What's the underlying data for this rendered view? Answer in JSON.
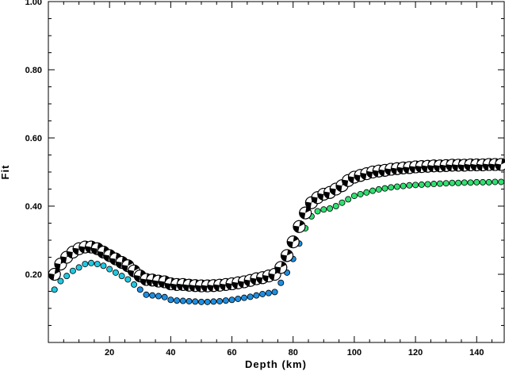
{
  "chart_data": {
    "type": "scatter",
    "xlabel": "Depth (km)",
    "ylabel": "Fit",
    "xlim": [
      0,
      149
    ],
    "ylim": [
      0,
      1.0
    ],
    "xticks": [
      20,
      40,
      60,
      80,
      100,
      120,
      140
    ],
    "yticks": [
      0.2,
      0.4,
      0.6,
      0.8,
      1.0
    ],
    "xtick_labels": [
      "20",
      "40",
      "60",
      "80",
      "100",
      "120",
      "140"
    ],
    "ytick_labels": [
      "0.20",
      "0.40",
      "0.60",
      "0.80",
      "1.00"
    ],
    "grid": false,
    "colors": {
      "low": "#20c8e0",
      "mid": "#1e8ee0",
      "high": "#30e070"
    },
    "series": [
      {
        "marker": "focal-mechanism",
        "x": [
          2,
          4,
          6,
          8,
          10,
          12,
          14,
          16,
          18,
          20,
          22,
          24,
          26,
          28,
          30,
          32,
          34,
          36,
          38,
          40,
          42,
          44,
          46,
          48,
          50,
          52,
          54,
          56,
          58,
          60,
          62,
          64,
          66,
          68,
          70,
          72,
          74,
          76,
          78,
          80,
          82,
          84,
          86,
          88,
          90,
          92,
          94,
          96,
          98,
          100,
          102,
          104,
          106,
          108,
          110,
          112,
          114,
          116,
          118,
          120,
          122,
          124,
          126,
          128,
          130,
          132,
          134,
          136,
          138,
          140,
          142,
          144,
          146,
          148
        ],
        "values": [
          0.2,
          0.23,
          0.25,
          0.265,
          0.275,
          0.28,
          0.28,
          0.275,
          0.265,
          0.255,
          0.245,
          0.235,
          0.225,
          0.21,
          0.195,
          0.185,
          0.183,
          0.18,
          0.178,
          0.172,
          0.17,
          0.17,
          0.168,
          0.167,
          0.166,
          0.166,
          0.167,
          0.168,
          0.17,
          0.172,
          0.175,
          0.178,
          0.182,
          0.187,
          0.19,
          0.195,
          0.2,
          0.22,
          0.255,
          0.295,
          0.34,
          0.38,
          0.41,
          0.425,
          0.435,
          0.44,
          0.45,
          0.46,
          0.475,
          0.485,
          0.49,
          0.495,
          0.5,
          0.503,
          0.505,
          0.508,
          0.51,
          0.512,
          0.513,
          0.515,
          0.516,
          0.517,
          0.518,
          0.518,
          0.519,
          0.52,
          0.52,
          0.52,
          0.521,
          0.521,
          0.521,
          0.522,
          0.522,
          0.522
        ]
      },
      {
        "marker": "circle",
        "x": [
          2,
          4,
          6,
          8,
          10,
          12,
          14,
          16,
          18,
          20,
          22,
          24,
          26,
          28,
          30,
          32,
          34,
          36,
          38,
          40,
          42,
          44,
          46,
          48,
          50,
          52,
          54,
          56,
          58,
          60,
          62,
          64,
          66,
          68,
          70,
          72,
          74,
          76,
          78,
          80,
          82,
          84,
          86,
          88,
          90,
          92,
          94,
          96,
          98,
          100,
          102,
          104,
          106,
          108,
          110,
          112,
          114,
          116,
          118,
          120,
          122,
          124,
          126,
          128,
          130,
          132,
          134,
          136,
          138,
          140,
          142,
          144,
          146,
          148
        ],
        "values": [
          0.155,
          0.18,
          0.195,
          0.21,
          0.22,
          0.23,
          0.233,
          0.23,
          0.225,
          0.215,
          0.205,
          0.195,
          0.185,
          0.17,
          0.155,
          0.14,
          0.138,
          0.136,
          0.133,
          0.125,
          0.123,
          0.122,
          0.121,
          0.12,
          0.119,
          0.119,
          0.12,
          0.121,
          0.123,
          0.125,
          0.128,
          0.131,
          0.134,
          0.138,
          0.142,
          0.145,
          0.148,
          0.175,
          0.205,
          0.245,
          0.29,
          0.335,
          0.37,
          0.385,
          0.39,
          0.393,
          0.4,
          0.41,
          0.42,
          0.43,
          0.435,
          0.44,
          0.445,
          0.449,
          0.452,
          0.455,
          0.457,
          0.459,
          0.461,
          0.462,
          0.463,
          0.464,
          0.465,
          0.466,
          0.467,
          0.468,
          0.468,
          0.469,
          0.469,
          0.47,
          0.47,
          0.47,
          0.471,
          0.471
        ]
      }
    ]
  }
}
